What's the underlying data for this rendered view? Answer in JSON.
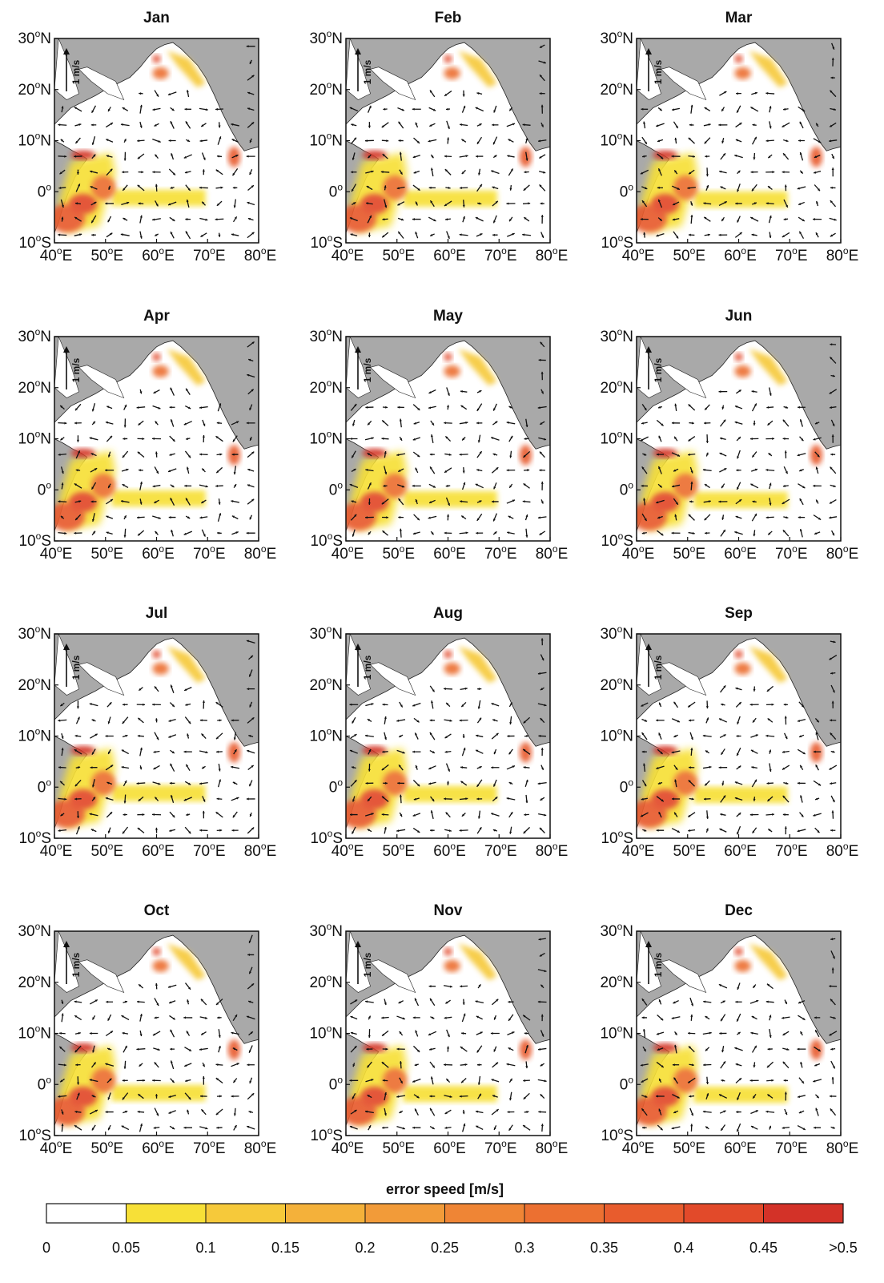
{
  "figure": {
    "panels": [
      {
        "title": "Jan"
      },
      {
        "title": "Feb"
      },
      {
        "title": "Mar"
      },
      {
        "title": "Apr"
      },
      {
        "title": "May"
      },
      {
        "title": "Jun"
      },
      {
        "title": "Jul"
      },
      {
        "title": "Aug"
      },
      {
        "title": "Sep"
      },
      {
        "title": "Oct"
      },
      {
        "title": "Nov"
      },
      {
        "title": "Dec"
      }
    ],
    "lat_ticks": [
      {
        "value": 30,
        "label": "30°N"
      },
      {
        "value": 20,
        "label": "20°N"
      },
      {
        "value": 10,
        "label": "10°N"
      },
      {
        "value": 0,
        "label": "0°"
      },
      {
        "value": -10,
        "label": "10°S"
      }
    ],
    "lon_ticks": [
      {
        "value": 40,
        "label": "40°E"
      },
      {
        "value": 50,
        "label": "50°E"
      },
      {
        "value": 60,
        "label": "60°E"
      },
      {
        "value": 70,
        "label": "70°E"
      },
      {
        "value": 80,
        "label": "80°E"
      }
    ],
    "reference_vector": {
      "label": "1 m/s",
      "speed": 1
    },
    "map_extent": {
      "lon": [
        40,
        80
      ],
      "lat": [
        -10,
        30
      ]
    },
    "land_color": "#a9a9a9",
    "ocean_color": "#ffffff",
    "arrow_color": "#111111"
  },
  "colorbar": {
    "title": "error speed [m/s]",
    "labels": [
      "0",
      "0.05",
      "0.1",
      "0.15",
      "0.2",
      "0.25",
      "0.3",
      "0.35",
      "0.4",
      "0.45",
      ">0.5"
    ],
    "colors": [
      "#ffffff",
      "#f7e037",
      "#f6c93a",
      "#f4b13a",
      "#f29b39",
      "#ef8535",
      "#ec7031",
      "#e85c2d",
      "#e24a2a",
      "#d33228"
    ]
  },
  "chart_data": {
    "type": "vector-field maps",
    "title": "",
    "months": [
      "Jan",
      "Feb",
      "Mar",
      "Apr",
      "May",
      "Jun",
      "Jul",
      "Aug",
      "Sep",
      "Oct",
      "Nov",
      "Dec"
    ],
    "variable": "error speed",
    "units": "m/s",
    "colorbar_range": [
      0,
      0.5
    ],
    "colorbar_step": 0.05
  }
}
